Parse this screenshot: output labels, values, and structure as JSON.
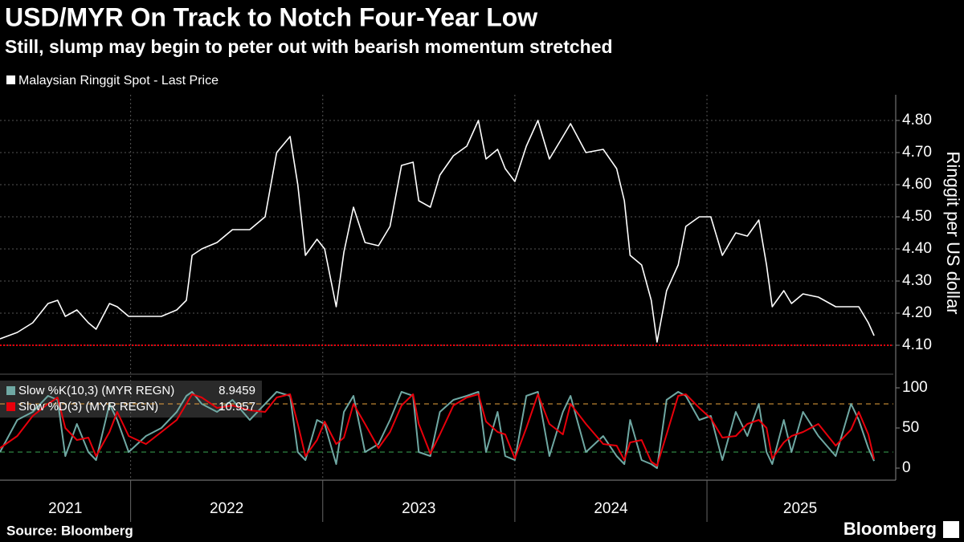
{
  "chart_data": [
    {
      "type": "line",
      "title": "USD/MYR On Track to Notch Four-Year Low",
      "subtitle": "Still, slump may begin to peter out with bearish momentum stretched",
      "source": "Source: Bloomberg",
      "brand": "Bloomberg",
      "y_label": "Ringgit per US dollar",
      "categories": [
        "2021",
        "2022",
        "2023",
        "2024",
        "2025"
      ],
      "xlim": [
        2021.32,
        2025.97
      ],
      "xticks": [
        2022,
        2023,
        2024,
        2025
      ],
      "ylim": [
        4.02,
        4.88
      ],
      "yticks": [
        {
          "value": 4.1,
          "label": "4.10"
        },
        {
          "value": 4.2,
          "label": "4.20"
        },
        {
          "value": 4.3,
          "label": "4.30"
        },
        {
          "value": 4.4,
          "label": "4.40"
        },
        {
          "value": 4.5,
          "label": "4.50"
        },
        {
          "value": 4.6,
          "label": "4.60"
        },
        {
          "value": 4.7,
          "label": "4.70"
        },
        {
          "value": 4.8,
          "label": "4.80"
        }
      ],
      "grid": true,
      "hline": {
        "value": 4.1,
        "color": "#e8000b"
      },
      "x": [
        2021.32,
        2021.41,
        2021.49,
        2021.57,
        2021.62,
        2021.66,
        2021.72,
        2021.78,
        2021.82,
        2021.89,
        2021.93,
        2021.99,
        2022.08,
        2022.16,
        2022.24,
        2022.29,
        2022.32,
        2022.37,
        2022.45,
        2022.53,
        2022.62,
        2022.7,
        2022.76,
        2022.83,
        2022.87,
        2022.91,
        2022.97,
        2023.01,
        2023.07,
        2023.11,
        2023.16,
        2023.22,
        2023.29,
        2023.35,
        2023.41,
        2023.47,
        2023.5,
        2023.56,
        2023.61,
        2023.68,
        2023.75,
        2023.81,
        2023.85,
        2023.91,
        2023.95,
        2024.0,
        2024.06,
        2024.12,
        2024.18,
        2024.25,
        2024.29,
        2024.37,
        2024.46,
        2024.53,
        2024.57,
        2024.6,
        2024.66,
        2024.71,
        2024.74,
        2024.79,
        2024.85,
        2024.89,
        2024.96,
        2025.02,
        2025.08,
        2025.15,
        2025.21,
        2025.27,
        2025.31,
        2025.34,
        2025.4,
        2025.44,
        2025.5,
        2025.58,
        2025.67,
        2025.75,
        2025.79,
        2025.84,
        2025.87
      ],
      "series": [
        {
          "name": "Malaysian Ringgit Spot - Last Price",
          "color": "#ffffff",
          "values": [
            4.12,
            4.14,
            4.17,
            4.23,
            4.24,
            4.19,
            4.21,
            4.17,
            4.15,
            4.23,
            4.22,
            4.19,
            4.19,
            4.19,
            4.21,
            4.24,
            4.38,
            4.4,
            4.42,
            4.46,
            4.46,
            4.5,
            4.7,
            4.75,
            4.6,
            4.38,
            4.43,
            4.4,
            4.22,
            4.39,
            4.53,
            4.42,
            4.41,
            4.47,
            4.66,
            4.67,
            4.55,
            4.53,
            4.63,
            4.69,
            4.72,
            4.8,
            4.68,
            4.71,
            4.65,
            4.61,
            4.72,
            4.8,
            4.68,
            4.75,
            4.79,
            4.7,
            4.71,
            4.65,
            4.55,
            4.38,
            4.35,
            4.24,
            4.11,
            4.27,
            4.35,
            4.47,
            4.5,
            4.5,
            4.38,
            4.45,
            4.44,
            4.49,
            4.35,
            4.22,
            4.27,
            4.23,
            4.26,
            4.25,
            4.22,
            4.22,
            4.22,
            4.17,
            4.13
          ]
        }
      ]
    },
    {
      "type": "line",
      "ylim": [
        -12,
        113
      ],
      "yticks": [
        0,
        50,
        100
      ],
      "reference_lines": [
        {
          "value": 80,
          "color": "#e8a33d"
        },
        {
          "value": 20,
          "color": "#3aa655"
        }
      ],
      "series": [
        {
          "name": "Slow %K(10,3) (MYR REGN)",
          "color": "#6fa8a3",
          "values": [
            20,
            60,
            70,
            90,
            85,
            15,
            55,
            20,
            10,
            80,
            60,
            20,
            40,
            50,
            70,
            90,
            95,
            80,
            70,
            85,
            60,
            80,
            95,
            90,
            20,
            10,
            60,
            55,
            5,
            70,
            90,
            20,
            30,
            60,
            95,
            90,
            20,
            15,
            70,
            85,
            90,
            95,
            20,
            70,
            15,
            10,
            90,
            95,
            15,
            70,
            90,
            20,
            40,
            15,
            5,
            60,
            10,
            5,
            0,
            85,
            95,
            90,
            60,
            65,
            10,
            70,
            40,
            80,
            20,
            5,
            60,
            20,
            70,
            40,
            15,
            80,
            60,
            25,
            8.9459
          ]
        },
        {
          "name": "Slow %D(3) (MYR REGN)",
          "color": "#e8000b",
          "values": [
            25,
            40,
            65,
            80,
            88,
            50,
            35,
            38,
            15,
            45,
            70,
            40,
            30,
            45,
            60,
            80,
            92,
            88,
            75,
            78,
            72,
            70,
            88,
            92,
            55,
            15,
            35,
            58,
            30,
            38,
            80,
            55,
            25,
            45,
            78,
            92,
            55,
            18,
            42,
            78,
            88,
            92,
            58,
            45,
            42,
            12,
            50,
            92,
            55,
            42,
            80,
            55,
            30,
            28,
            10,
            32,
            35,
            8,
            3,
            42,
            90,
            92,
            75,
            62,
            38,
            40,
            55,
            60,
            50,
            12,
            32,
            40,
            45,
            55,
            28,
            48,
            70,
            42,
            10.957
          ]
        }
      ]
    }
  ]
}
